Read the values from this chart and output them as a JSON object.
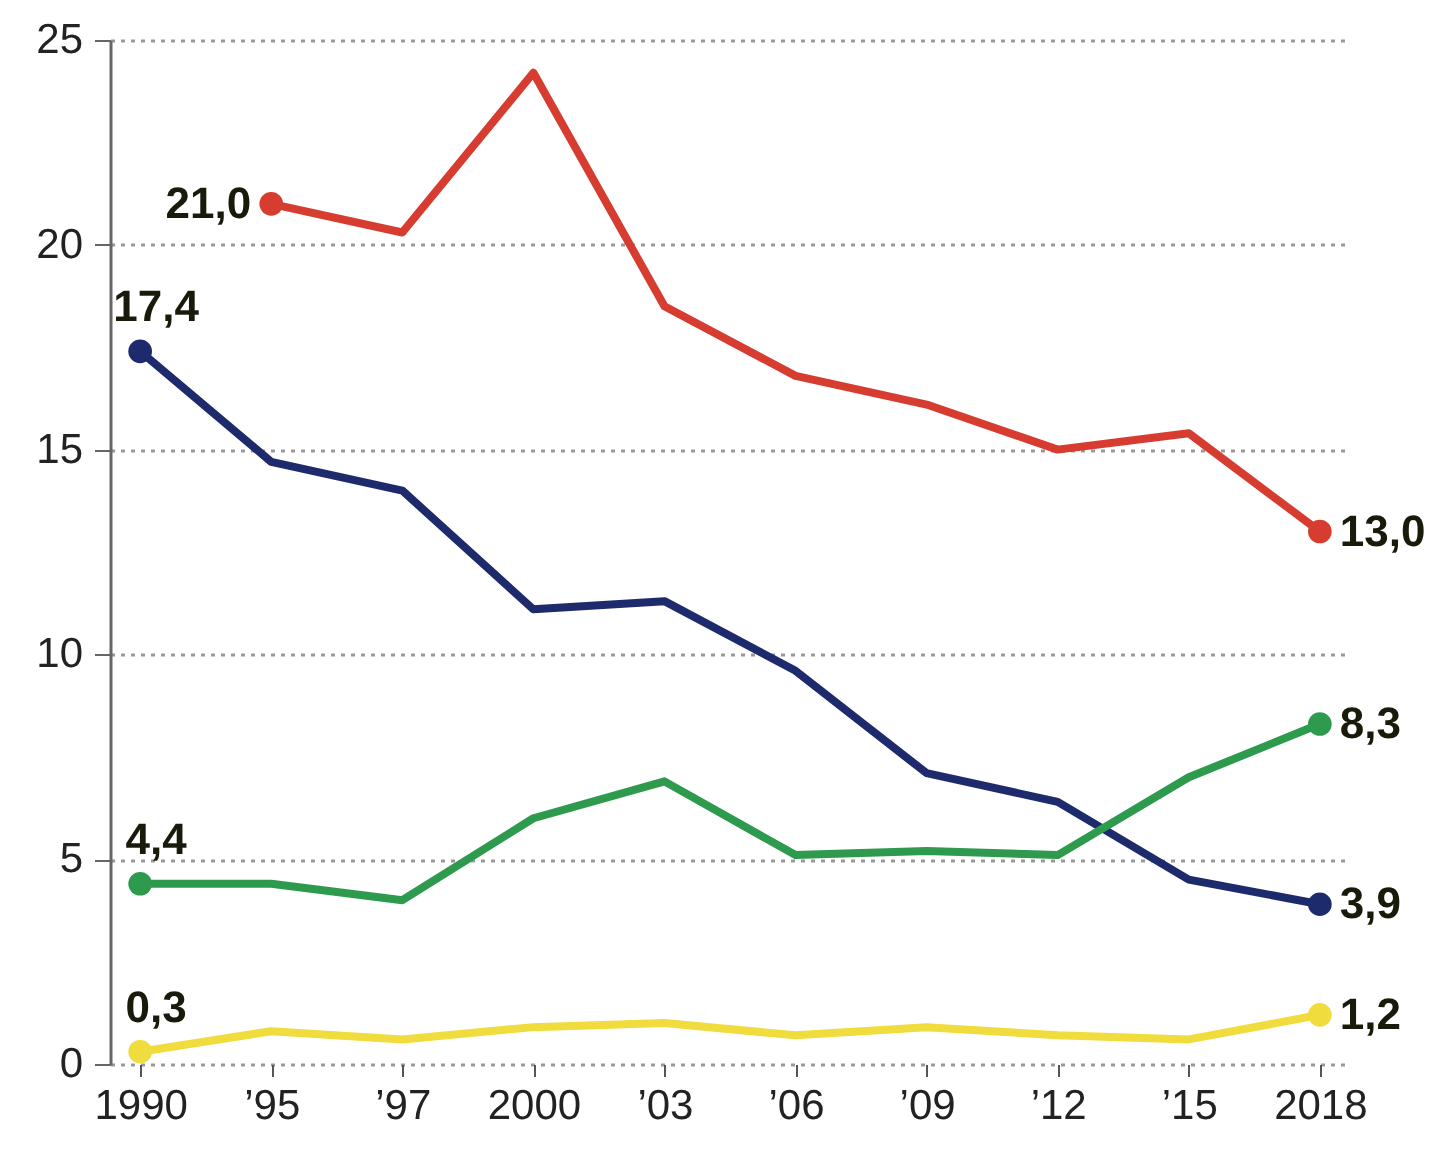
{
  "chart_data": {
    "type": "line",
    "categories": [
      "1990",
      "’95",
      "’97",
      "2000",
      "’03",
      "’06",
      "’09",
      "’12",
      "’15",
      "2018"
    ],
    "ylim": [
      0,
      25
    ],
    "yticks": [
      0,
      5,
      10,
      15,
      20,
      25
    ],
    "grid": "y",
    "line_style": "solid",
    "series": [
      {
        "color": "#d63c2f",
        "values": [
          null,
          21.0,
          20.3,
          24.2,
          18.5,
          16.8,
          16.1,
          15.0,
          15.4,
          13.0
        ],
        "value_labels": [
          null,
          "21,0",
          null,
          null,
          null,
          null,
          null,
          null,
          null,
          "13,0"
        ]
      },
      {
        "color": "#1d2a6b",
        "values": [
          17.4,
          14.7,
          14.0,
          11.1,
          11.3,
          9.6,
          7.1,
          6.4,
          4.5,
          3.9
        ],
        "value_labels": [
          "17,4",
          null,
          null,
          null,
          null,
          null,
          null,
          null,
          null,
          "3,9"
        ]
      },
      {
        "color": "#2e9a4e",
        "values": [
          4.4,
          4.4,
          4.0,
          6.0,
          6.9,
          5.1,
          5.2,
          5.1,
          7.0,
          8.3
        ],
        "value_labels": [
          "4,4",
          null,
          null,
          null,
          null,
          null,
          null,
          null,
          null,
          "8,3"
        ]
      },
      {
        "color": "#f0dc3c",
        "values": [
          0.3,
          0.8,
          0.6,
          0.9,
          1.0,
          0.7,
          0.9,
          0.7,
          0.6,
          1.2
        ],
        "value_labels": [
          "0,3",
          null,
          null,
          null,
          null,
          null,
          null,
          null,
          null,
          "1,2"
        ]
      }
    ]
  }
}
